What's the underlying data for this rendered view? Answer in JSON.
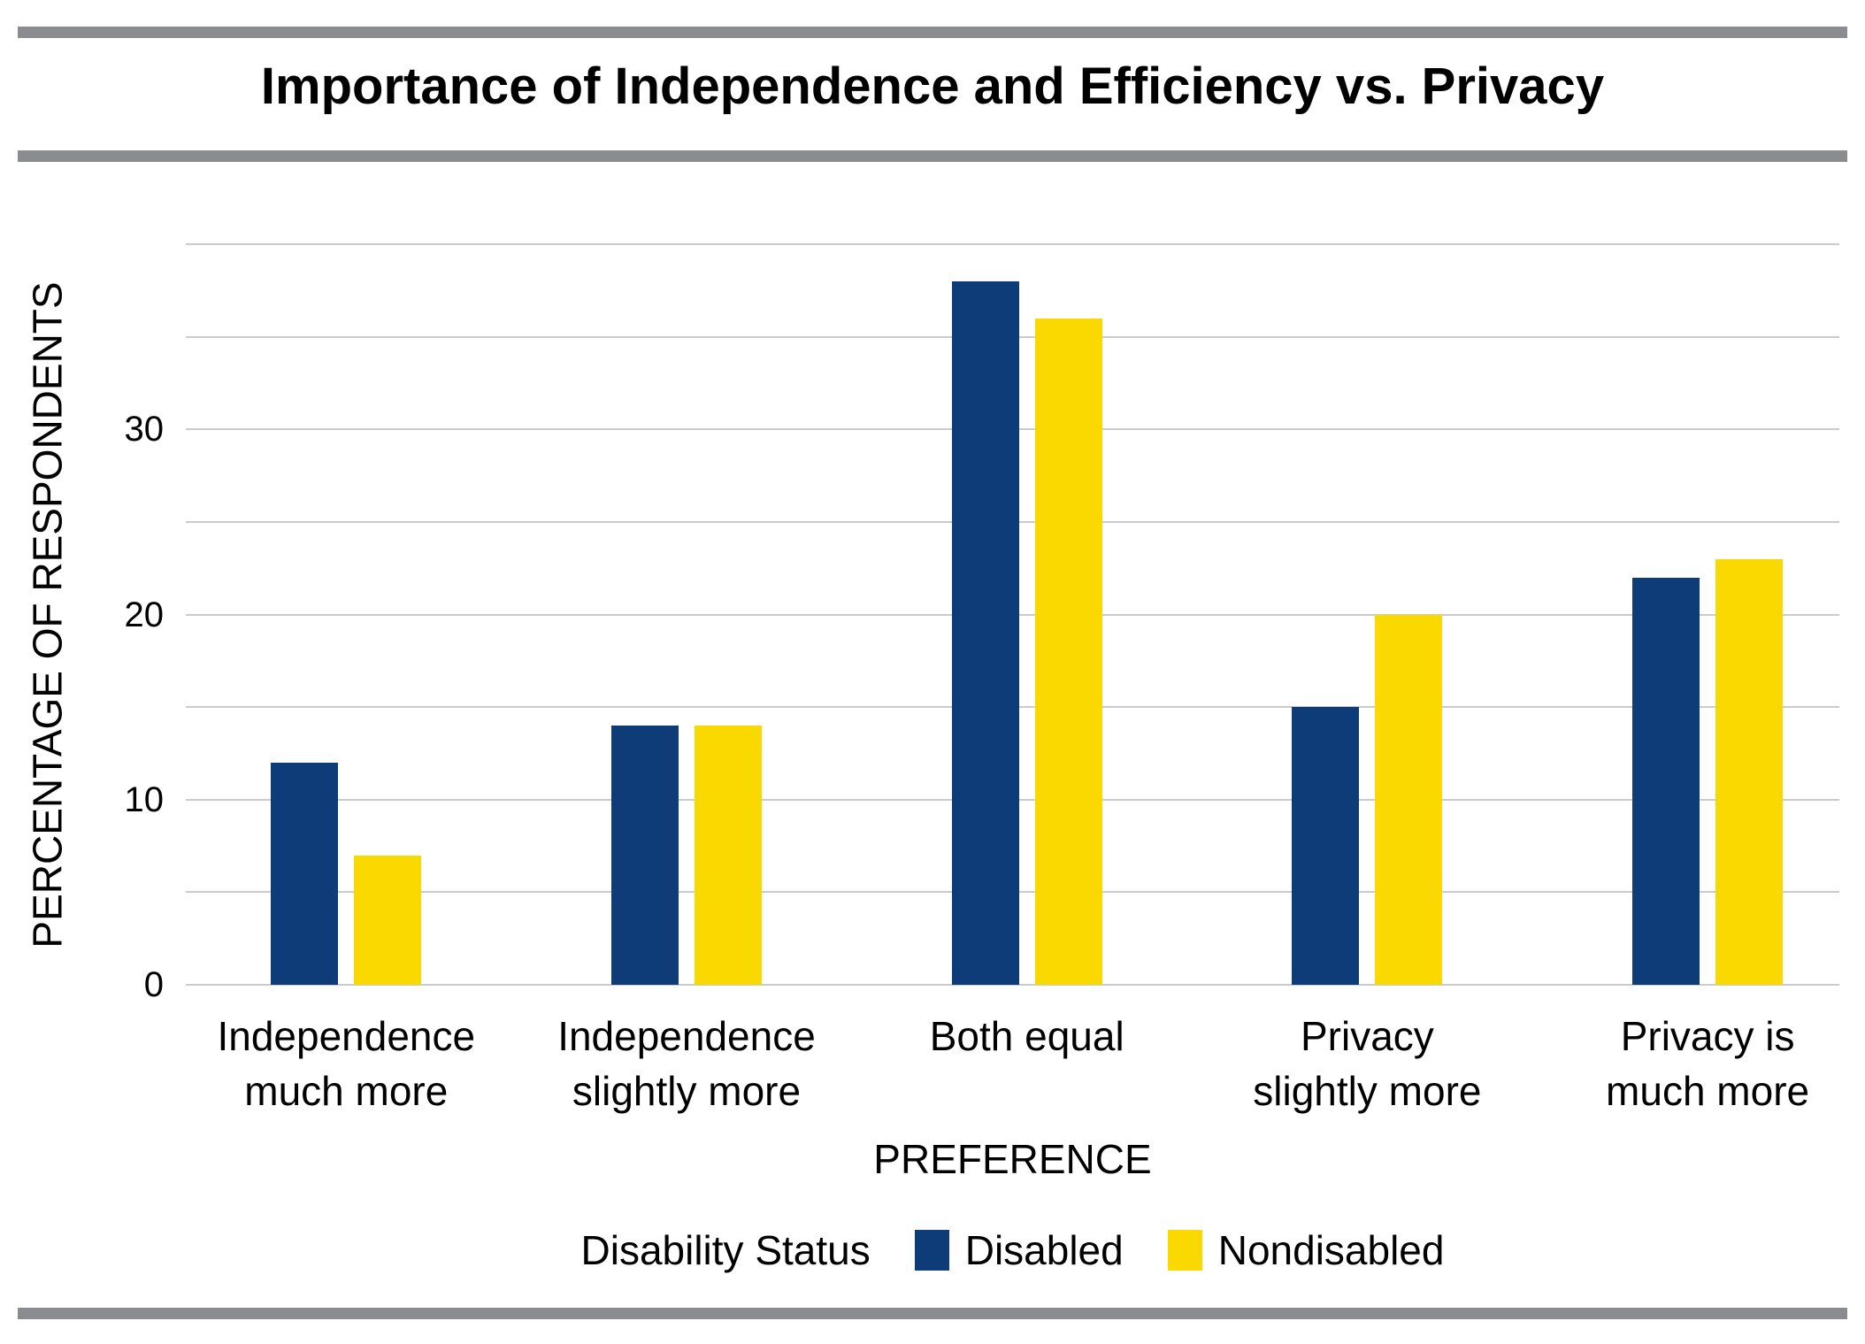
{
  "chart_data": {
    "type": "bar",
    "title": "Importance of Independence and Efficiency vs. Privacy",
    "categories": [
      [
        "Independence",
        "much more"
      ],
      [
        "Independence",
        "slightly more"
      ],
      [
        "Both equal"
      ],
      [
        "Privacy",
        "slightly more"
      ],
      [
        "Privacy is",
        "much more"
      ]
    ],
    "series": [
      {
        "name": "Disabled",
        "color": "#0d3c78",
        "values": [
          12,
          14,
          38,
          15,
          22
        ]
      },
      {
        "name": "Nondisabled",
        "color": "#f9d900",
        "values": [
          7,
          14,
          36,
          20,
          23
        ]
      }
    ],
    "xlabel": "PREFERENCE",
    "ylabel": "PERCENTAGE OF RESPONDENTS",
    "ylim": [
      0,
      40
    ],
    "ytick_labels": [
      0,
      10,
      20,
      30
    ],
    "gridline_step": 5,
    "grid": "horizontal",
    "legend_title": "Disability Status",
    "legend_position": "bottom"
  }
}
